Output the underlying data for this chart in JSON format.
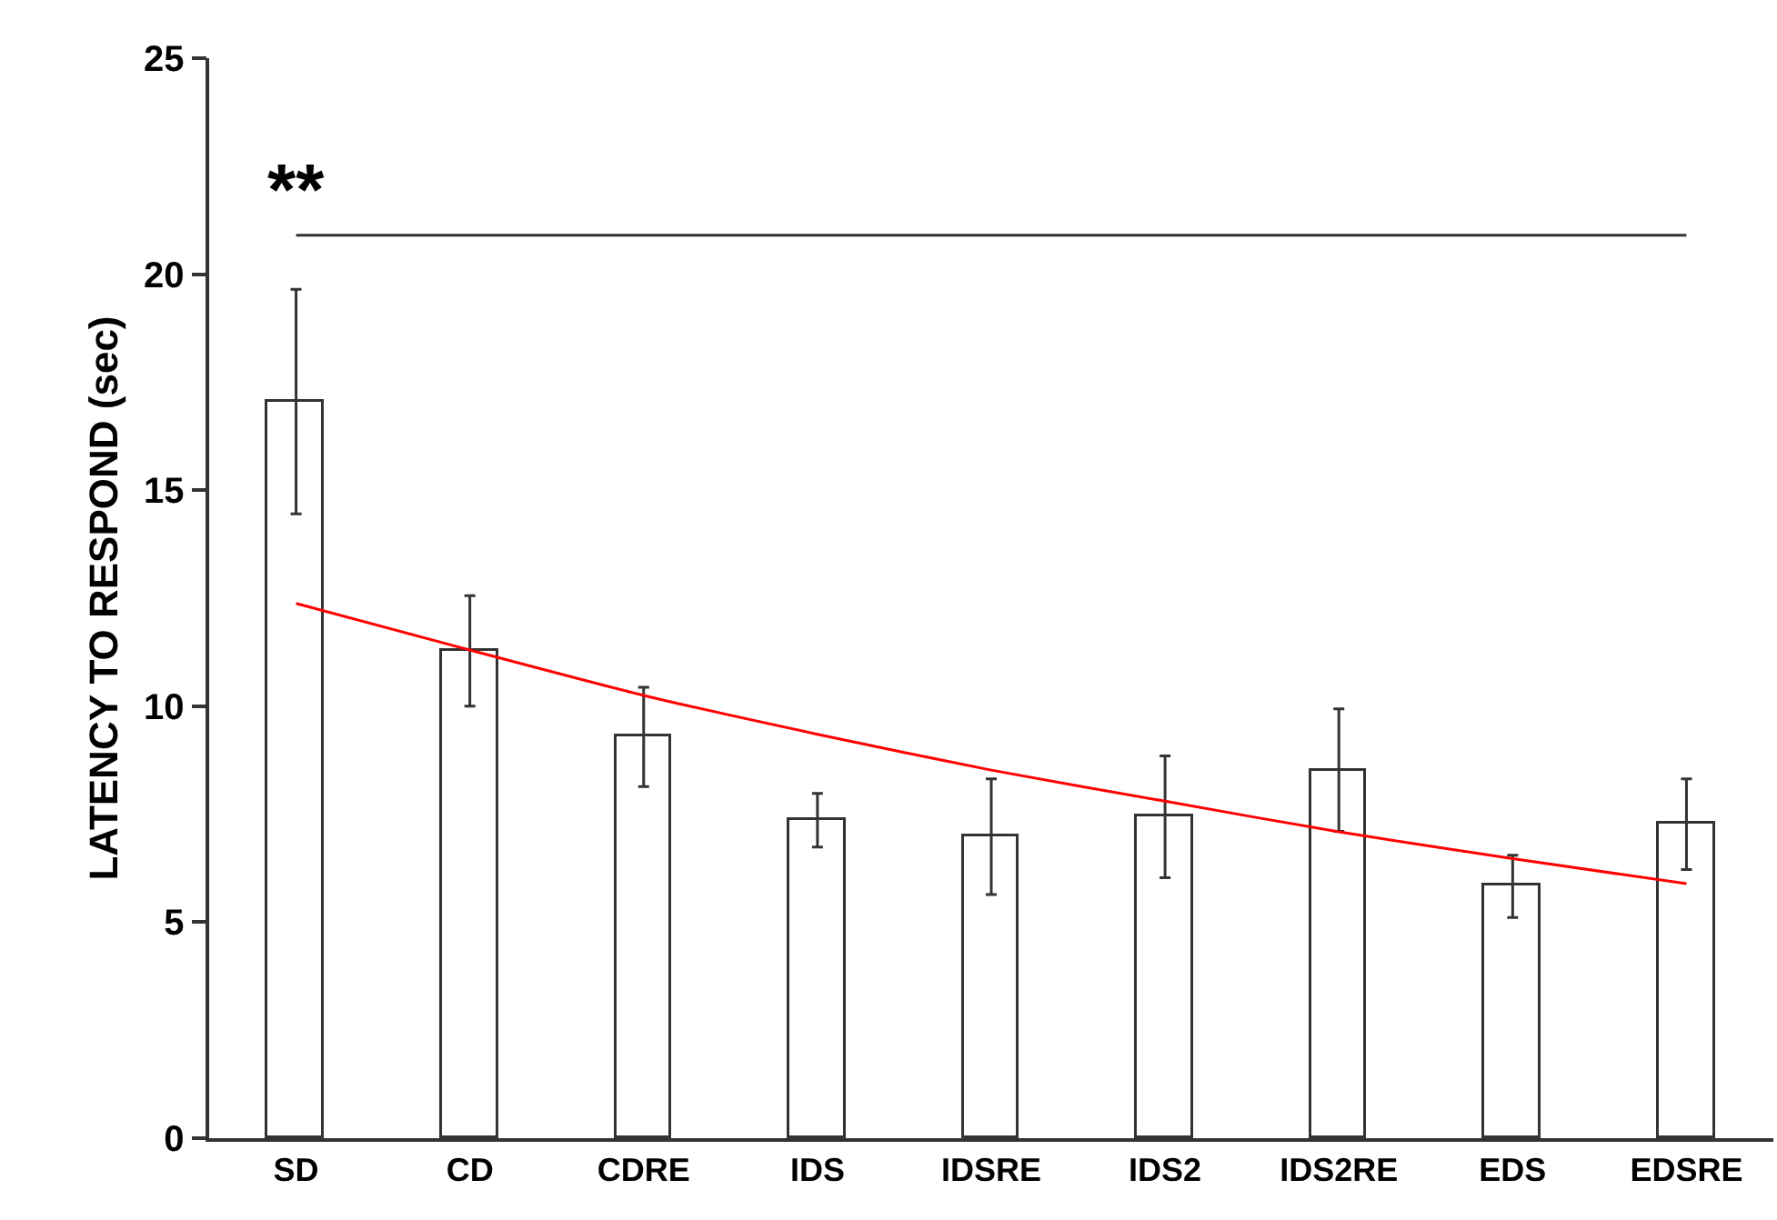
{
  "chart_data": {
    "type": "bar",
    "ylabel": "LATENCY TO RESPOND (sec)",
    "categories": [
      "SD",
      "CD",
      "CDRE",
      "IDS",
      "IDSRE",
      "IDS2",
      "IDS2RE",
      "EDS",
      "EDSRE"
    ],
    "series": [
      {
        "color": "#ffffff",
        "values": [
          17.05,
          11.28,
          9.29,
          7.36,
          6.98,
          7.44,
          8.52,
          5.83,
          7.27
        ],
        "errors": [
          2.6,
          1.28,
          1.15,
          0.62,
          1.34,
          1.41,
          1.42,
          0.72,
          1.05
        ]
      },
      {
        "type": "line",
        "color": "#ff0000",
        "x": [
          "SD",
          "CD",
          "CDRE",
          "IDS",
          "IDSRE",
          "IDS2",
          "IDS2RE",
          "EDS",
          "EDSRE"
        ],
        "values": [
          12.38,
          11.3,
          10.25,
          9.35,
          8.52,
          7.8,
          7.09,
          6.47,
          5.89
        ]
      }
    ],
    "ylim": [
      0,
      25
    ],
    "yticks": [
      0,
      5,
      10,
      15,
      20,
      25
    ],
    "grid": false,
    "marker": "none",
    "line_style": "solid",
    "ref_lines": [
      {
        "axis": "y",
        "value": 20.9,
        "label": "**",
        "color": "#333333"
      }
    ]
  }
}
